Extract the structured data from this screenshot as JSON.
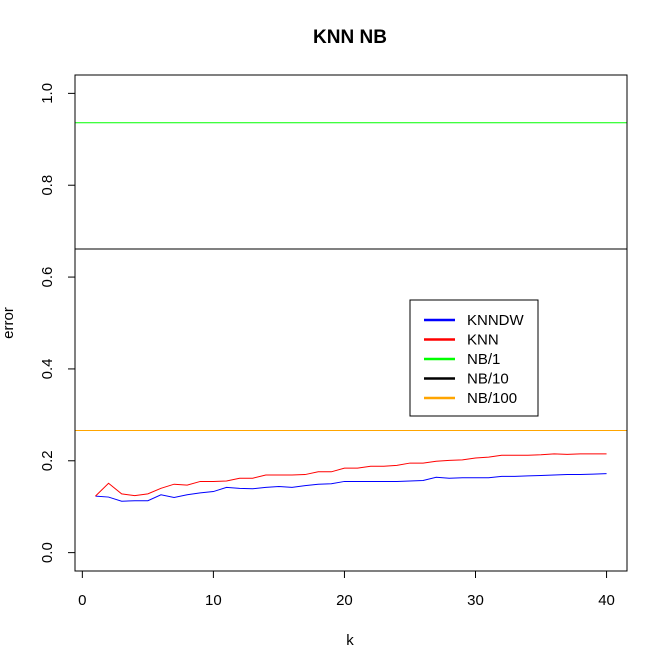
{
  "chart_data": {
    "type": "line",
    "title": "KNN NB",
    "xlabel": "k",
    "ylabel": "error",
    "xlim": [
      -0.56,
      41.56
    ],
    "ylim": [
      -0.04,
      1.04
    ],
    "xticks": [
      0,
      10,
      20,
      30,
      40
    ],
    "yticks": [
      0.0,
      0.2,
      0.4,
      0.6,
      0.8,
      1.0
    ],
    "xtick_labels": [
      "0",
      "10",
      "20",
      "30",
      "40"
    ],
    "ytick_labels": [
      "0.0",
      "0.2",
      "0.4",
      "0.6",
      "0.8",
      "1.0"
    ],
    "legend_position": "right",
    "grid": false,
    "x": [
      1,
      2,
      3,
      4,
      5,
      6,
      7,
      8,
      9,
      10,
      11,
      12,
      13,
      14,
      15,
      16,
      17,
      18,
      19,
      20,
      21,
      22,
      23,
      24,
      25,
      26,
      27,
      28,
      29,
      30,
      31,
      32,
      33,
      34,
      35,
      36,
      37,
      38,
      39,
      40
    ],
    "series": [
      {
        "name": "KNNDW",
        "color": "#0000ff",
        "kind": "line",
        "values": [
          0.123,
          0.121,
          0.112,
          0.113,
          0.113,
          0.126,
          0.12,
          0.126,
          0.13,
          0.133,
          0.142,
          0.14,
          0.139,
          0.142,
          0.144,
          0.142,
          0.146,
          0.149,
          0.15,
          0.155,
          0.155,
          0.155,
          0.155,
          0.155,
          0.156,
          0.157,
          0.164,
          0.162,
          0.163,
          0.163,
          0.163,
          0.166,
          0.166,
          0.167,
          0.168,
          0.169,
          0.17,
          0.17,
          0.171,
          0.172
        ]
      },
      {
        "name": "KNN",
        "color": "#ff0000",
        "kind": "line",
        "values": [
          0.123,
          0.151,
          0.128,
          0.124,
          0.128,
          0.14,
          0.149,
          0.147,
          0.155,
          0.155,
          0.156,
          0.162,
          0.162,
          0.169,
          0.169,
          0.169,
          0.17,
          0.176,
          0.176,
          0.184,
          0.184,
          0.188,
          0.188,
          0.19,
          0.195,
          0.195,
          0.199,
          0.201,
          0.202,
          0.206,
          0.208,
          0.212,
          0.212,
          0.212,
          0.213,
          0.215,
          0.214,
          0.215,
          0.215,
          0.215
        ]
      },
      {
        "name": "NB/1",
        "color": "#00ff00",
        "kind": "hline",
        "value": 0.936
      },
      {
        "name": "NB/10",
        "color": "#000000",
        "kind": "hline",
        "value": 0.661
      },
      {
        "name": "NB/100",
        "color": "#ffa500",
        "kind": "hline",
        "value": 0.266
      }
    ]
  }
}
